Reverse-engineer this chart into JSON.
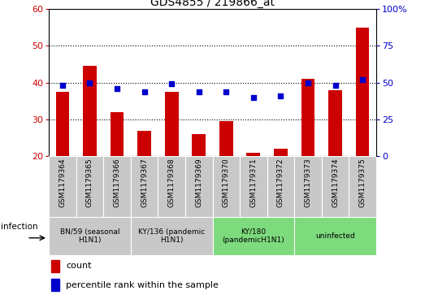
{
  "title": "GDS4855 / 219866_at",
  "samples": [
    "GSM1179364",
    "GSM1179365",
    "GSM1179366",
    "GSM1179367",
    "GSM1179368",
    "GSM1179369",
    "GSM1179370",
    "GSM1179371",
    "GSM1179372",
    "GSM1179373",
    "GSM1179374",
    "GSM1179375"
  ],
  "counts": [
    37.5,
    44.5,
    32.0,
    27.0,
    37.5,
    26.0,
    29.5,
    21.0,
    22.0,
    41.0,
    38.0,
    55.0
  ],
  "percentile": [
    48,
    50,
    46,
    44,
    49,
    44,
    44,
    40,
    41,
    50,
    48,
    52
  ],
  "ylim_left": [
    20,
    60
  ],
  "ylim_right": [
    0,
    100
  ],
  "yticks_left": [
    20,
    30,
    40,
    50,
    60
  ],
  "yticks_right": [
    0,
    25,
    50,
    75,
    100
  ],
  "groups": [
    {
      "label": "BN/59 (seasonal\nH1N1)",
      "start": 0,
      "end": 3,
      "color": "#c8c8c8"
    },
    {
      "label": "KY/136 (pandemic\nH1N1)",
      "start": 3,
      "end": 6,
      "color": "#c8c8c8"
    },
    {
      "label": "KY/180\n(pandemicH1N1)",
      "start": 6,
      "end": 9,
      "color": "#7dda7d"
    },
    {
      "label": "uninfected",
      "start": 9,
      "end": 12,
      "color": "#7dda7d"
    }
  ],
  "bar_color": "#cc0000",
  "dot_color": "#0000cc",
  "left_tick_color": "#cc0000",
  "right_tick_color": "#0000cc",
  "infection_label": "infection",
  "legend_count": "count",
  "legend_percentile": "percentile rank within the sample",
  "grid_color": "#000000",
  "sample_bg_color": "#c8c8c8",
  "bg_color": "#ffffff",
  "bar_bottom": 20
}
